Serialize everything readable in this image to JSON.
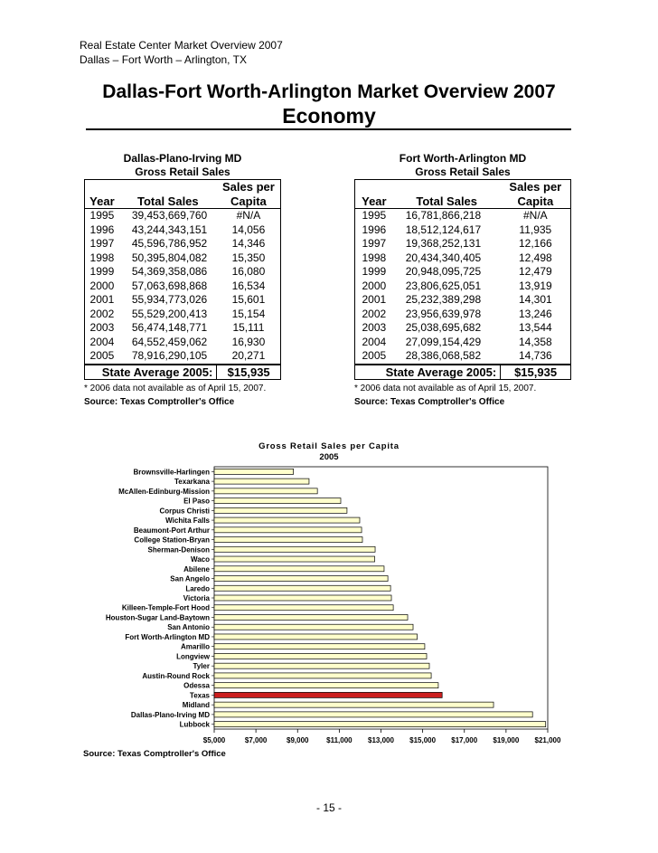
{
  "header": {
    "line1": "Real Estate Center Market Overview 2007",
    "line2": "Dallas – Fort Worth – Arlington, TX"
  },
  "title": "Dallas-Fort Worth-Arlington Market Overview 2007",
  "subtitle": "Economy",
  "tables": [
    {
      "title": "Dallas-Plano-Irving MD",
      "subtitle": "Gross Retail Sales",
      "header_top": "Sales per",
      "columns": [
        "Year",
        "Total Sales",
        "Capita"
      ],
      "rows": [
        [
          "1995",
          "39,453,669,760",
          "#N/A"
        ],
        [
          "1996",
          "43,244,343,151",
          "14,056"
        ],
        [
          "1997",
          "45,596,786,952",
          "14,346"
        ],
        [
          "1998",
          "50,395,804,082",
          "15,350"
        ],
        [
          "1999",
          "54,369,358,086",
          "16,080"
        ],
        [
          "2000",
          "57,063,698,868",
          "16,534"
        ],
        [
          "2001",
          "55,934,773,026",
          "15,601"
        ],
        [
          "2002",
          "55,529,200,413",
          "15,154"
        ],
        [
          "2003",
          "56,474,148,771",
          "15,111"
        ],
        [
          "2004",
          "64,552,459,062",
          "16,930"
        ],
        [
          "2005",
          "78,916,290,105",
          "20,271"
        ]
      ],
      "footer_label": "State Average 2005:",
      "footer_value": "$15,935",
      "note": "* 2006 data not available as of April 15, 2007.",
      "source": "Source: Texas Comptroller's Office"
    },
    {
      "title": "Fort Worth-Arlington MD",
      "subtitle": "Gross Retail Sales",
      "header_top": "Sales per",
      "columns": [
        "Year",
        "Total Sales",
        "Capita"
      ],
      "rows": [
        [
          "1995",
          "16,781,866,218",
          "#N/A"
        ],
        [
          "1996",
          "18,512,124,617",
          "11,935"
        ],
        [
          "1997",
          "19,368,252,131",
          "12,166"
        ],
        [
          "1998",
          "20,434,340,405",
          "12,498"
        ],
        [
          "1999",
          "20,948,095,725",
          "12,479"
        ],
        [
          "2000",
          "23,806,625,051",
          "13,919"
        ],
        [
          "2001",
          "25,232,389,298",
          "14,301"
        ],
        [
          "2002",
          "23,956,639,978",
          "13,246"
        ],
        [
          "2003",
          "25,038,695,682",
          "13,544"
        ],
        [
          "2004",
          "27,099,154,429",
          "14,358"
        ],
        [
          "2005",
          "28,386,068,582",
          "14,736"
        ]
      ],
      "footer_label": "State Average 2005:",
      "footer_value": "$15,935",
      "note": "* 2006 data not available as of April 15, 2007.",
      "source": "Source: Texas Comptroller's Office"
    }
  ],
  "chart_data": {
    "type": "hbar",
    "title": "Gross Retail Sales per Capita",
    "subtitle": "2005",
    "categories": [
      "Brownsville-Harlingen",
      "Texarkana",
      "McAllen-Edinburg-Mission",
      "El Paso",
      "Corpus Christi",
      "Wichita Falls",
      "Beaumont-Port Arthur",
      "College Station-Bryan",
      "Sherman-Denison",
      "Waco",
      "Abilene",
      "San Angelo",
      "Laredo",
      "Victoria",
      "Killeen-Temple-Fort Hood",
      "Houston-Sugar Land-Baytown",
      "San Antonio",
      "Fort Worth-Arlington MD",
      "Amarillo",
      "Longview",
      "Tyler",
      "Austin-Round Rock",
      "Odessa",
      "Texas",
      "Midland",
      "Dallas-Plano-Irving MD",
      "Lubbock"
    ],
    "values": [
      8800,
      9550,
      9950,
      11070,
      11370,
      11980,
      12070,
      12110,
      12720,
      12700,
      13150,
      13330,
      13460,
      13500,
      13590,
      14280,
      14540,
      14736,
      15100,
      15190,
      15320,
      15410,
      15750,
      15935,
      18400,
      20271,
      20900
    ],
    "colors": [
      "#ffffcc",
      "#ffffcc",
      "#ffffcc",
      "#ffffcc",
      "#ffffcc",
      "#ffffcc",
      "#ffffcc",
      "#ffffcc",
      "#ffffcc",
      "#ffffcc",
      "#ffffcc",
      "#ffffcc",
      "#ffffcc",
      "#ffffcc",
      "#ffffcc",
      "#ffffcc",
      "#ffffcc",
      "#ffffcc",
      "#ffffcc",
      "#ffffcc",
      "#ffffcc",
      "#ffffcc",
      "#ffffcc",
      "#cc1f1f",
      "#ffffcc",
      "#ffffcc",
      "#ffffcc"
    ],
    "xlim": [
      5000,
      21000
    ],
    "xticks": [
      {
        "value": 5000,
        "label": "$5,000"
      },
      {
        "value": 7000,
        "label": "$7,000"
      },
      {
        "value": 9000,
        "label": "$9,000"
      },
      {
        "value": 11000,
        "label": "$11,000"
      },
      {
        "value": 13000,
        "label": "$13,000"
      },
      {
        "value": 15000,
        "label": "$15,000"
      },
      {
        "value": 17000,
        "label": "$17,000"
      },
      {
        "value": 19000,
        "label": "$19,000"
      },
      {
        "value": 21000,
        "label": "$21,000"
      }
    ],
    "source": "Source: Texas Comptroller's Office"
  },
  "page_number": "- 15 -"
}
